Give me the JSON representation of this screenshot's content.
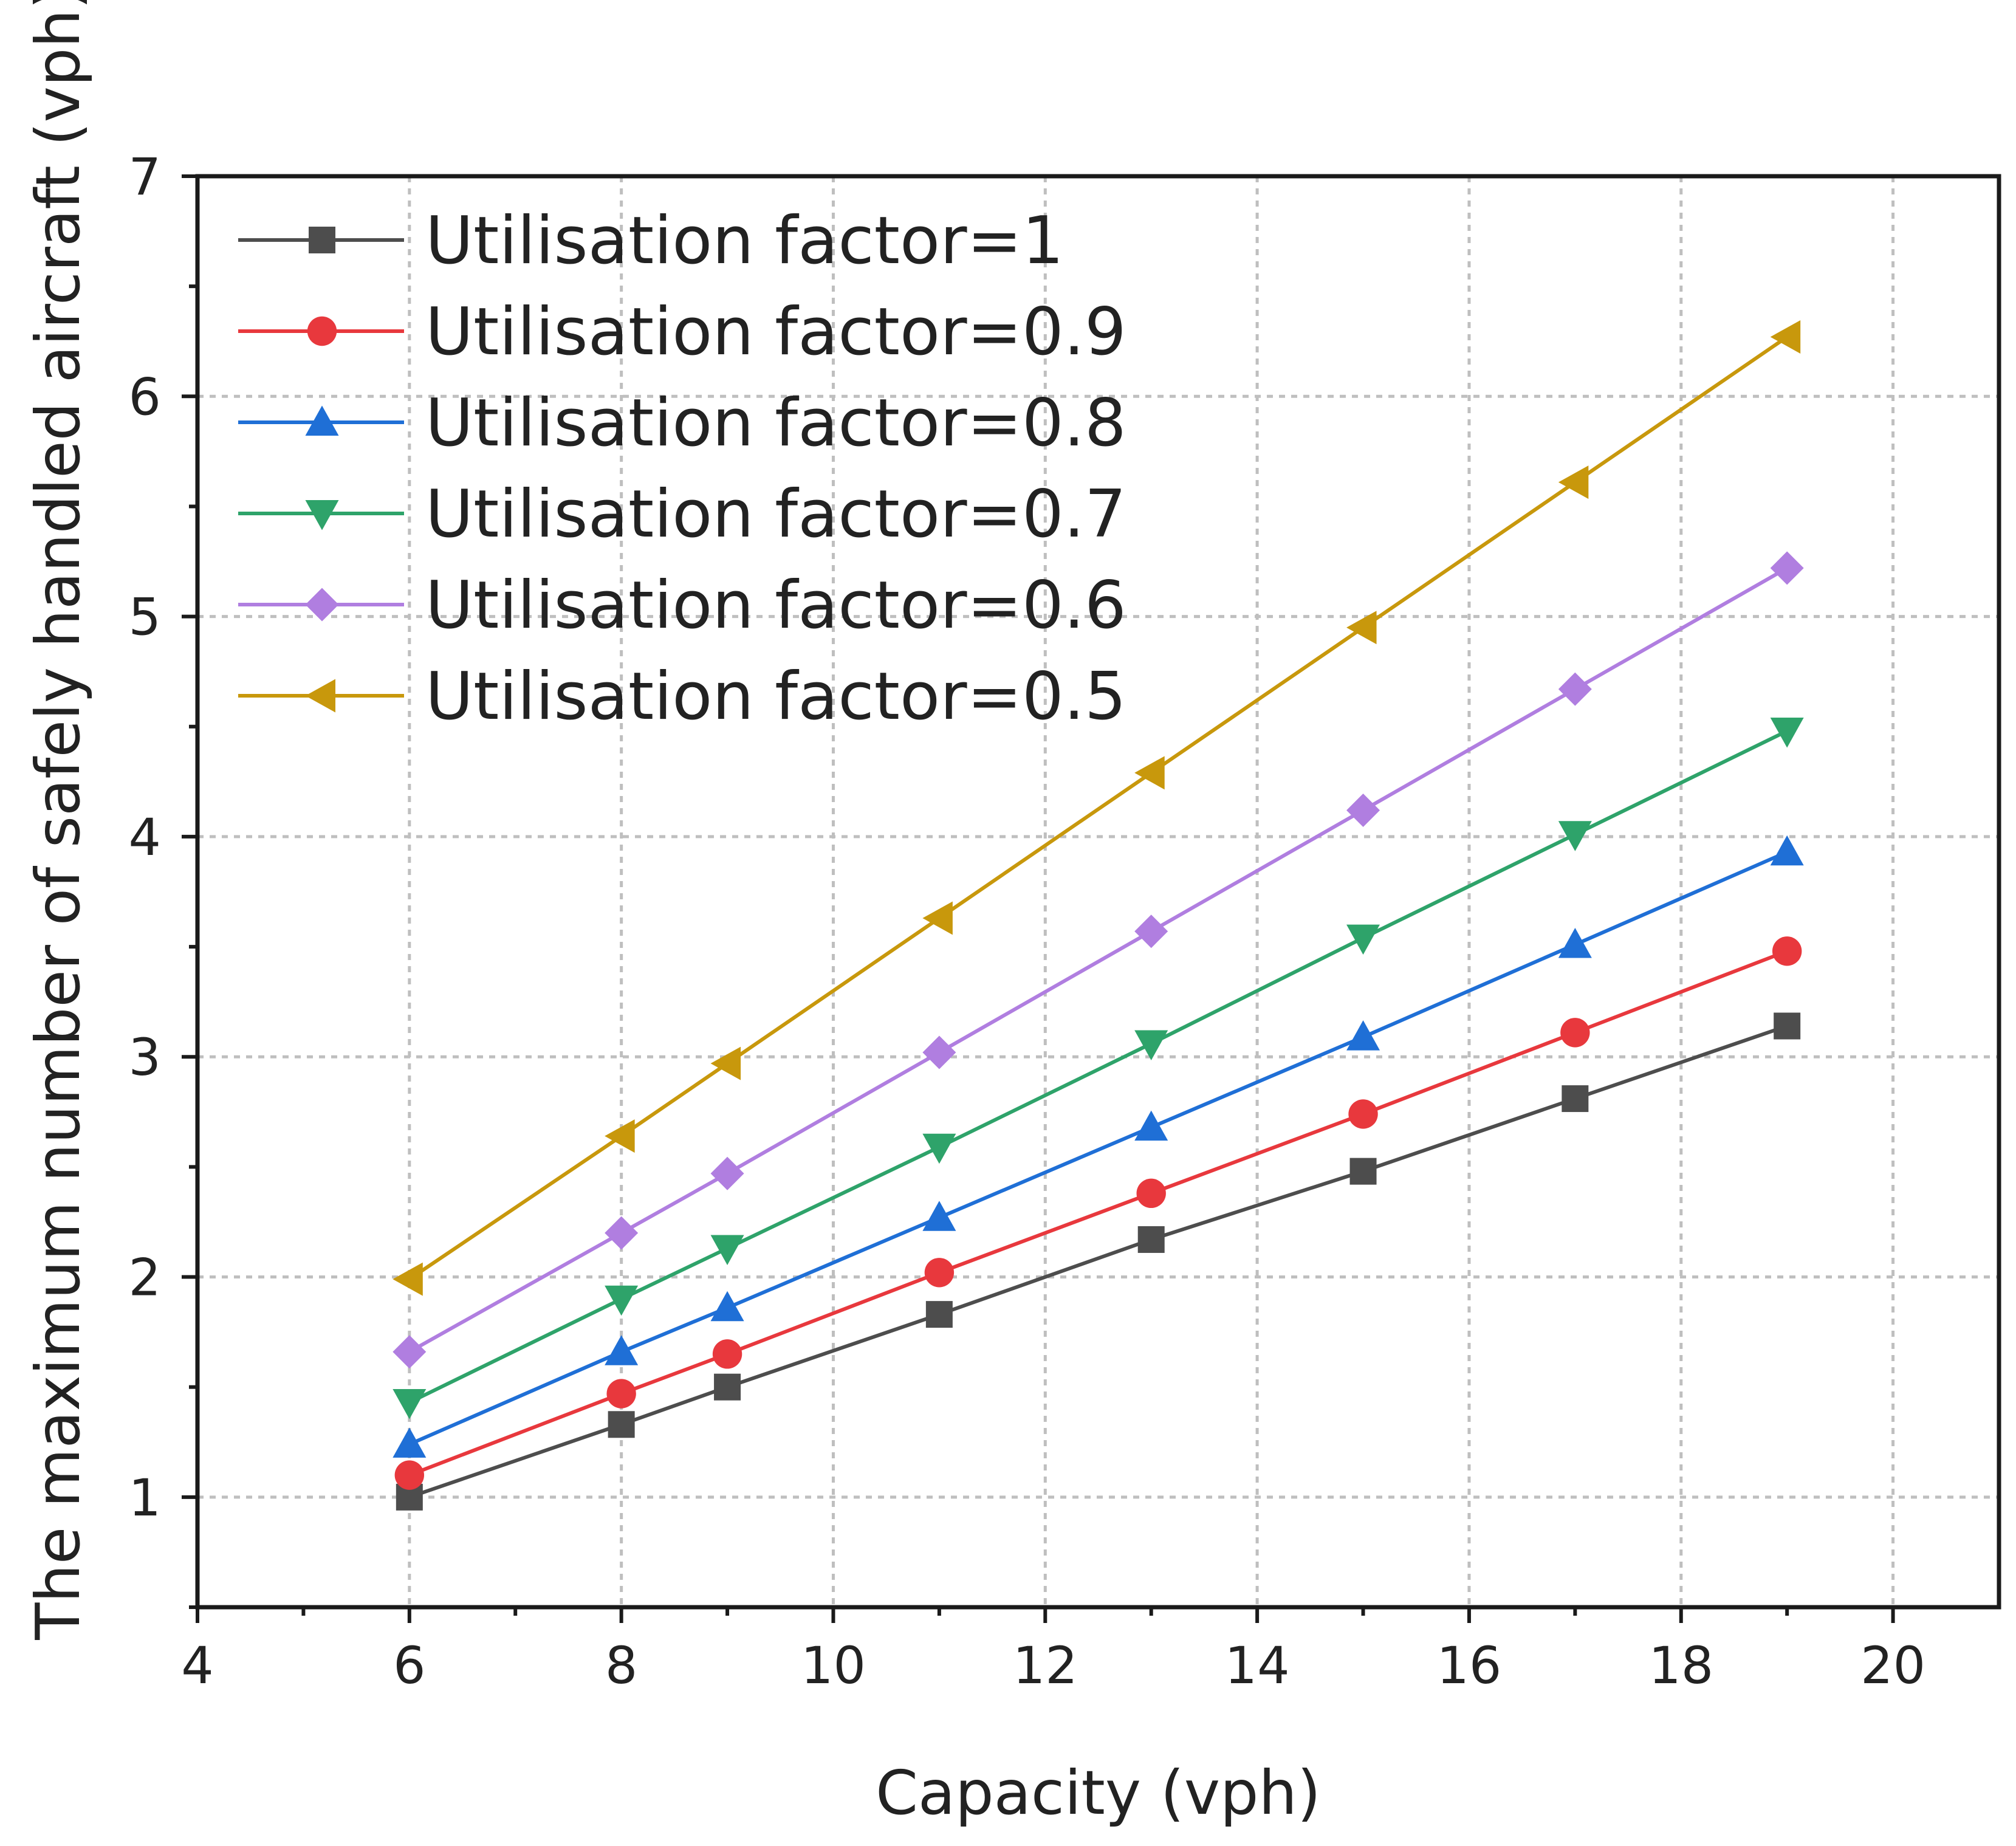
{
  "chart_data": {
    "type": "line",
    "title": "",
    "xlabel": "Capacity (vph)",
    "ylabel": "The maximum number of safely handled aircraft (vph)",
    "xlim": [
      4,
      21
    ],
    "ylim": [
      0.5,
      7
    ],
    "xticks": [
      4,
      6,
      8,
      10,
      12,
      14,
      16,
      18,
      20
    ],
    "yticks": [
      1,
      2,
      3,
      4,
      5,
      6,
      7
    ],
    "grid": true,
    "legend_position": "top-left",
    "x": [
      6,
      8,
      9,
      11,
      13,
      15,
      17,
      19
    ],
    "series": [
      {
        "name": "Utilisation factor=1",
        "color": "#4d4d4d",
        "marker": "square",
        "values": [
          1.0,
          1.33,
          1.5,
          1.83,
          2.17,
          2.48,
          2.81,
          3.14
        ]
      },
      {
        "name": "Utilisation factor=0.9",
        "color": "#e8383d",
        "marker": "circle",
        "values": [
          1.1,
          1.47,
          1.65,
          2.02,
          2.38,
          2.74,
          3.11,
          3.48
        ]
      },
      {
        "name": "Utilisation factor=0.8",
        "color": "#1f6fd6",
        "marker": "triangle-up",
        "values": [
          1.24,
          1.66,
          1.86,
          2.27,
          2.68,
          3.09,
          3.51,
          3.93
        ]
      },
      {
        "name": "Utilisation factor=0.7",
        "color": "#2ea36a",
        "marker": "triangle-down",
        "values": [
          1.43,
          1.9,
          2.13,
          2.59,
          3.06,
          3.54,
          4.01,
          4.48
        ]
      },
      {
        "name": "Utilisation factor=0.6",
        "color": "#b07ee0",
        "marker": "diamond",
        "values": [
          1.66,
          2.2,
          2.47,
          3.02,
          3.57,
          4.12,
          4.67,
          5.22
        ]
      },
      {
        "name": "Utilisation factor=0.5",
        "color": "#c8980c",
        "marker": "triangle-left",
        "values": [
          1.99,
          2.64,
          2.97,
          3.63,
          4.29,
          4.95,
          5.61,
          6.27
        ]
      }
    ]
  }
}
